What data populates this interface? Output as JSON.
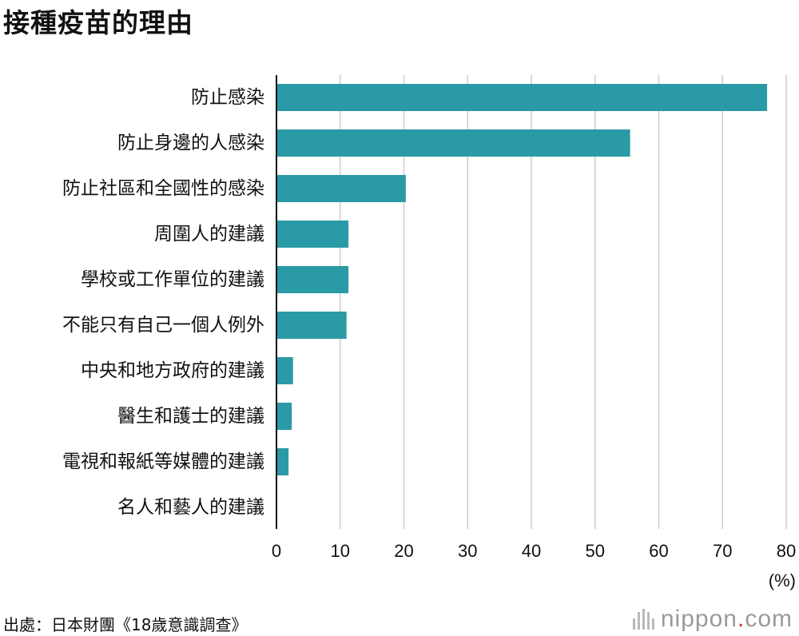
{
  "title": "接種疫苗的理由",
  "source": "出處：日本財團《18歲意識調查》",
  "logo": {
    "name": "nippon",
    "dot": ".",
    "tld": "com"
  },
  "colors": {
    "bar": "#2a9aa6",
    "grid": "#cccccc",
    "axis": "#111111"
  },
  "chart_data": {
    "type": "bar",
    "orientation": "horizontal",
    "categories": [
      "防止感染",
      "防止身邊的人感染",
      "防止社區和全國性的感染",
      "周圍人的建議",
      "學校或工作單位的建議",
      "不能只有自己一個人例外",
      "中央和地方政府的建議",
      "醫生和護士的建議",
      "電視和報紙等媒體的建議",
      "名人和藝人的建議"
    ],
    "values": [
      77.0,
      55.5,
      20.3,
      11.3,
      11.3,
      11.0,
      2.6,
      2.4,
      1.9,
      0.1
    ],
    "xlim": [
      0,
      80
    ],
    "xticks": [
      0,
      10,
      20,
      30,
      40,
      50,
      60,
      70,
      80
    ],
    "unit_label": "(%)",
    "grid": true
  }
}
